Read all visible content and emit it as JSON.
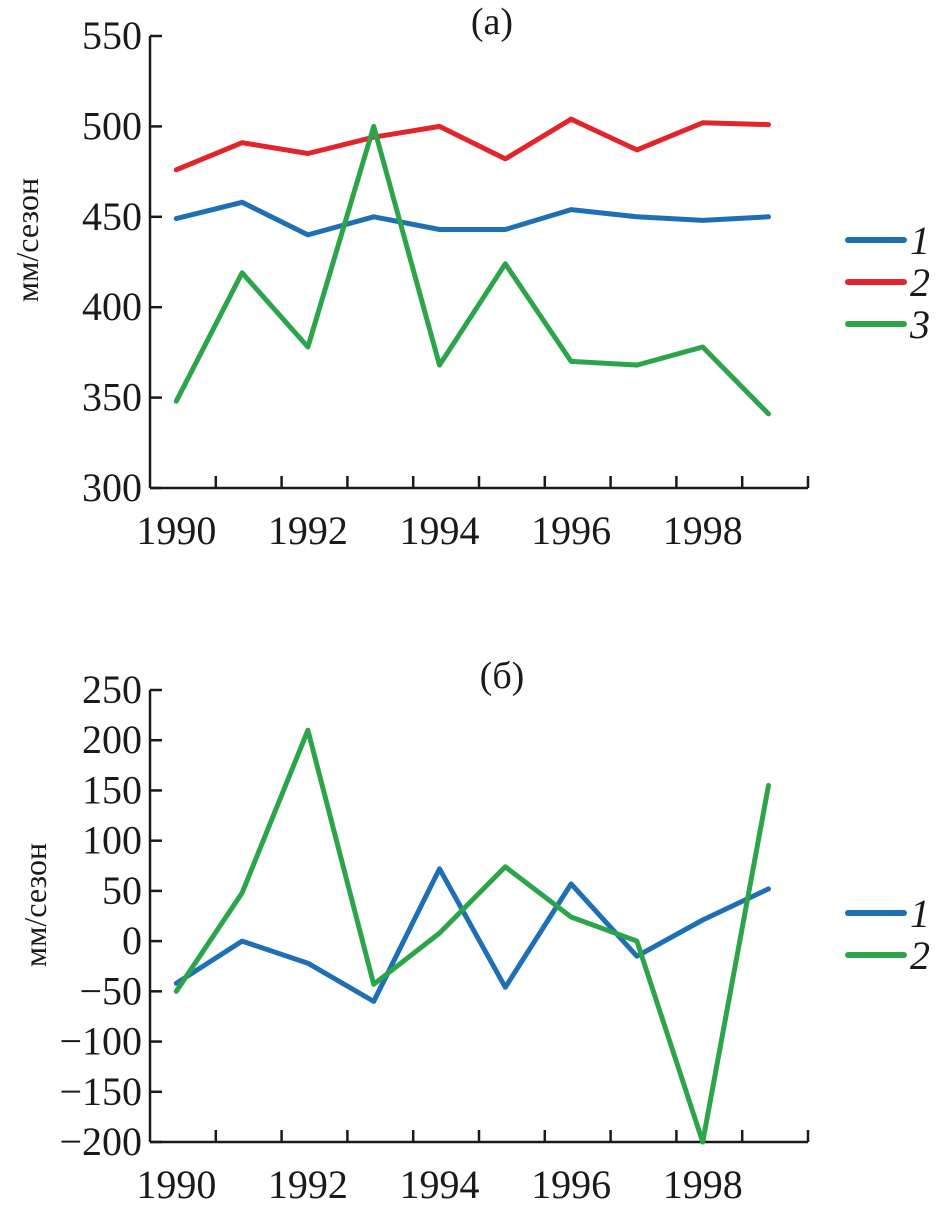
{
  "chart_data": [
    {
      "type": "line",
      "title": "(а)",
      "xlabel": "",
      "ylabel": "мм/сезон",
      "ylim": [
        300,
        550
      ],
      "yticks": [
        300,
        350,
        400,
        450,
        500,
        550
      ],
      "xlim": [
        1989.6,
        1999.6
      ],
      "xtick_labels": [
        1990,
        1992,
        1994,
        1996,
        1998
      ],
      "minor_xticks": [
        1990.6,
        1991.6,
        1992.6,
        1993.6,
        1994.6,
        1995.6,
        1996.6,
        1997.6,
        1998.6,
        1999.6
      ],
      "x": [
        1990,
        1991,
        1992,
        1993,
        1994,
        1995,
        1996,
        1997,
        1998,
        1999
      ],
      "legend_position": "right",
      "series": [
        {
          "name": "1",
          "color": "#1f6fb5",
          "values": [
            449,
            458,
            440,
            450,
            443,
            443,
            454,
            450,
            448,
            450
          ]
        },
        {
          "name": "2",
          "color": "#e3242b",
          "values": [
            476,
            491,
            485,
            494,
            500,
            482,
            504,
            487,
            502,
            501
          ]
        },
        {
          "name": "3",
          "color": "#2ca54a",
          "values": [
            348,
            419,
            378,
            500,
            368,
            424,
            370,
            368,
            378,
            341
          ]
        }
      ]
    },
    {
      "type": "line",
      "title": "(б)",
      "xlabel": "",
      "ylabel": "мм/сезон",
      "ylim": [
        -200,
        250
      ],
      "yticks": [
        -200,
        -150,
        -100,
        -50,
        0,
        50,
        100,
        150,
        200,
        250
      ],
      "ytick_labels": [
        "−200",
        "−150",
        "−100",
        "−50",
        "0",
        "50",
        "100",
        "150",
        "200",
        "250"
      ],
      "xlim": [
        1989.6,
        1999.6
      ],
      "xtick_labels": [
        1990,
        1992,
        1994,
        1996,
        1998
      ],
      "minor_xticks": [
        1990.6,
        1991.6,
        1992.6,
        1993.6,
        1994.6,
        1995.6,
        1996.6,
        1997.6,
        1998.6,
        1999.6
      ],
      "x": [
        1990,
        1991,
        1992,
        1993,
        1994,
        1995,
        1996,
        1997,
        1998,
        1999
      ],
      "legend_position": "right",
      "series": [
        {
          "name": "1",
          "color": "#1f6fb5",
          "values": [
            -42,
            0,
            -22,
            -60,
            72,
            -46,
            57,
            -15,
            21,
            52
          ]
        },
        {
          "name": "2",
          "color": "#2ca54a",
          "values": [
            -50,
            48,
            210,
            -43,
            8,
            74,
            24,
            0,
            -200,
            155
          ]
        }
      ]
    }
  ]
}
